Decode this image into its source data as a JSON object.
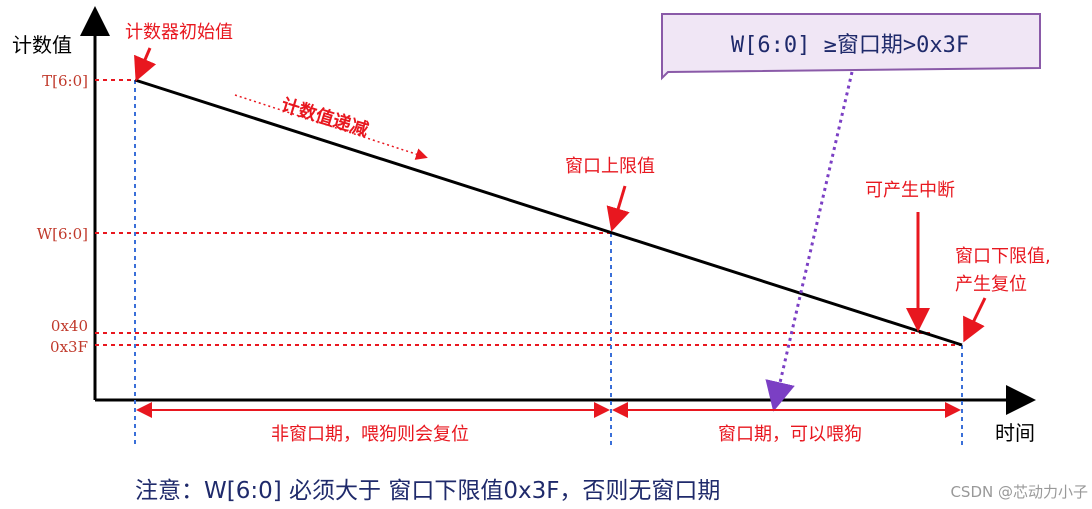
{
  "axes": {
    "y_label": "计数值",
    "x_label": "时间",
    "levels": [
      "T[6:0]",
      "W[6:0]",
      "0x40",
      "0x3F"
    ]
  },
  "annotations": {
    "initial": "计数器初始值",
    "decreasing": "计数值递减",
    "upper": "窗口上限值",
    "interrupt": "可产生中断",
    "lower_1": "窗口下限值,",
    "lower_2": "产生复位"
  },
  "banner": "W[6:0] ≥窗口期>0x3F",
  "spans": [
    "非窗口期，喂狗则会复位",
    "窗口期，可以喂狗"
  ],
  "note": "注意：W[6:0] 必须大于 窗口下限值0x3F，否则无窗口期",
  "watermark": "CSDN @芯动力小子"
}
